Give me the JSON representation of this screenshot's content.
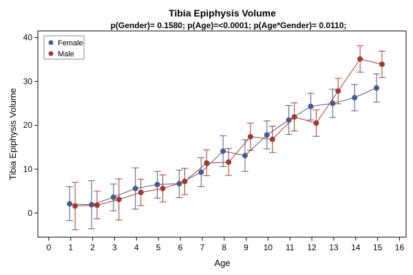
{
  "chart_data": {
    "type": "line",
    "title": "Tibia Epiphysis Volume",
    "subtitle": "p(Gender)= 0.1580; p(Age)=<0.0001; p(Age*Gender)= 0.0110;",
    "xlabel": "Age",
    "ylabel": "Tibia Epiphysis Volume",
    "xlim": [
      -0.5,
      16.3
    ],
    "ylim": [
      -5.5,
      41.5
    ],
    "xticks": [
      0,
      1,
      2,
      3,
      4,
      5,
      6,
      7,
      8,
      9,
      10,
      11,
      12,
      13,
      14,
      15,
      16
    ],
    "yticks": [
      0,
      10,
      20,
      30,
      40
    ],
    "grid": false,
    "legend_position": "top-left",
    "series": [
      {
        "name": "Female",
        "color": "#4a5a8c",
        "x": [
          0.95,
          1.95,
          2.95,
          3.95,
          4.95,
          5.95,
          6.95,
          7.95,
          8.95,
          9.95,
          10.95,
          11.95,
          12.95,
          13.95,
          14.95
        ],
        "y": [
          2.1,
          1.9,
          3.6,
          5.6,
          6.5,
          6.7,
          9.3,
          14.1,
          13.1,
          17.8,
          21.2,
          24.3,
          25.0,
          26.3,
          28.5
        ],
        "lower": [
          -1.7,
          -3.6,
          0.5,
          0.9,
          3.4,
          3.5,
          6.0,
          10.6,
          9.5,
          14.6,
          17.9,
          21.2,
          21.8,
          23.3,
          25.3
        ],
        "upper": [
          6.0,
          7.4,
          6.6,
          10.3,
          9.5,
          9.8,
          12.6,
          17.6,
          16.7,
          21.0,
          24.5,
          27.3,
          28.2,
          29.3,
          31.7
        ]
      },
      {
        "name": "Male",
        "color": "#a03a2f",
        "x": [
          1.2,
          2.2,
          3.2,
          4.2,
          5.2,
          6.2,
          7.2,
          8.2,
          9.2,
          10.2,
          11.2,
          12.2,
          13.2,
          14.2,
          15.2
        ],
        "y": [
          1.6,
          1.8,
          3.1,
          4.7,
          5.6,
          7.2,
          11.4,
          11.6,
          17.4,
          16.8,
          21.9,
          20.5,
          27.8,
          35.1,
          33.9
        ],
        "lower": [
          -3.8,
          -1.3,
          -1.6,
          1.7,
          2.5,
          4.2,
          8.5,
          8.6,
          14.3,
          13.8,
          18.7,
          17.5,
          24.9,
          32.1,
          30.9
        ],
        "upper": [
          7.0,
          5.0,
          7.8,
          7.7,
          8.7,
          10.2,
          14.4,
          14.7,
          20.5,
          19.8,
          25.1,
          23.5,
          30.7,
          38.1,
          36.9
        ]
      }
    ]
  }
}
